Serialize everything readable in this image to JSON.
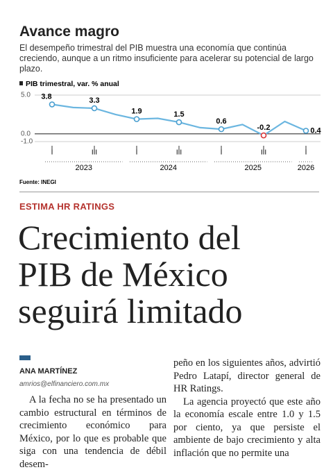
{
  "header": {
    "title": "Avance magro",
    "subtitle": "El desempeño trimestral del PIB muestra una economía que continúa creciendo, aunque a un ritmo insuficiente para acelerar su potencial de largo plazo."
  },
  "chart_data": {
    "type": "line",
    "y_label": "PIB trimestral, var. % anual",
    "categories": [
      "I",
      null,
      "III",
      null,
      "I",
      null,
      "III",
      null,
      "I",
      null,
      "III",
      null,
      "I"
    ],
    "years": [
      "2023",
      "2024",
      "2025",
      "2026"
    ],
    "values": [
      3.8,
      3.4,
      3.3,
      2.5,
      1.9,
      2.0,
      1.5,
      0.8,
      0.6,
      1.2,
      -0.2,
      1.6,
      0.4
    ],
    "value_labels": [
      "3.8",
      null,
      "3.3",
      null,
      "1.9",
      null,
      "1.5",
      null,
      "0.6",
      null,
      "-0.2",
      null,
      "0.4"
    ],
    "marker_colors": [
      "#4a9fd0",
      null,
      "#4a9fd0",
      null,
      "#4a9fd0",
      null,
      "#4a9fd0",
      null,
      "#4a9fd0",
      null,
      "#d9383a",
      null,
      "#4a9fd0"
    ],
    "color": "#6bb6e0",
    "ylim": [
      -1,
      5
    ],
    "yticks": [
      {
        "value": -1,
        "label": "-1.0"
      },
      {
        "value": 0,
        "label": "0.0"
      },
      {
        "value": 5,
        "label": "5.0"
      }
    ],
    "grid": true,
    "source": "Fuente: INEGI"
  },
  "article": {
    "kicker": "ESTIMA HR RATINGS",
    "headline": [
      "Crecimiento del",
      "PIB de México",
      "seguirá limitado"
    ],
    "author": "ANA MARTÍNEZ",
    "email": "amrios@elfinanciero.com.mx",
    "paragraphs": [
      "A la fecha no se ha presentado un cambio estructural en términos de crecimiento económico para México, por lo que es probable que siga con una tendencia de débil desem-",
      "peño en los siguientes años, advirtió Pedro Latapí, director general de HR Ratings.",
      "La agencia proyectó que este año la economía escale entre 1.0 y 1.5 por ciento, ya que persiste el ambiente de bajo crecimiento y alta inflación que no permite una"
    ]
  }
}
